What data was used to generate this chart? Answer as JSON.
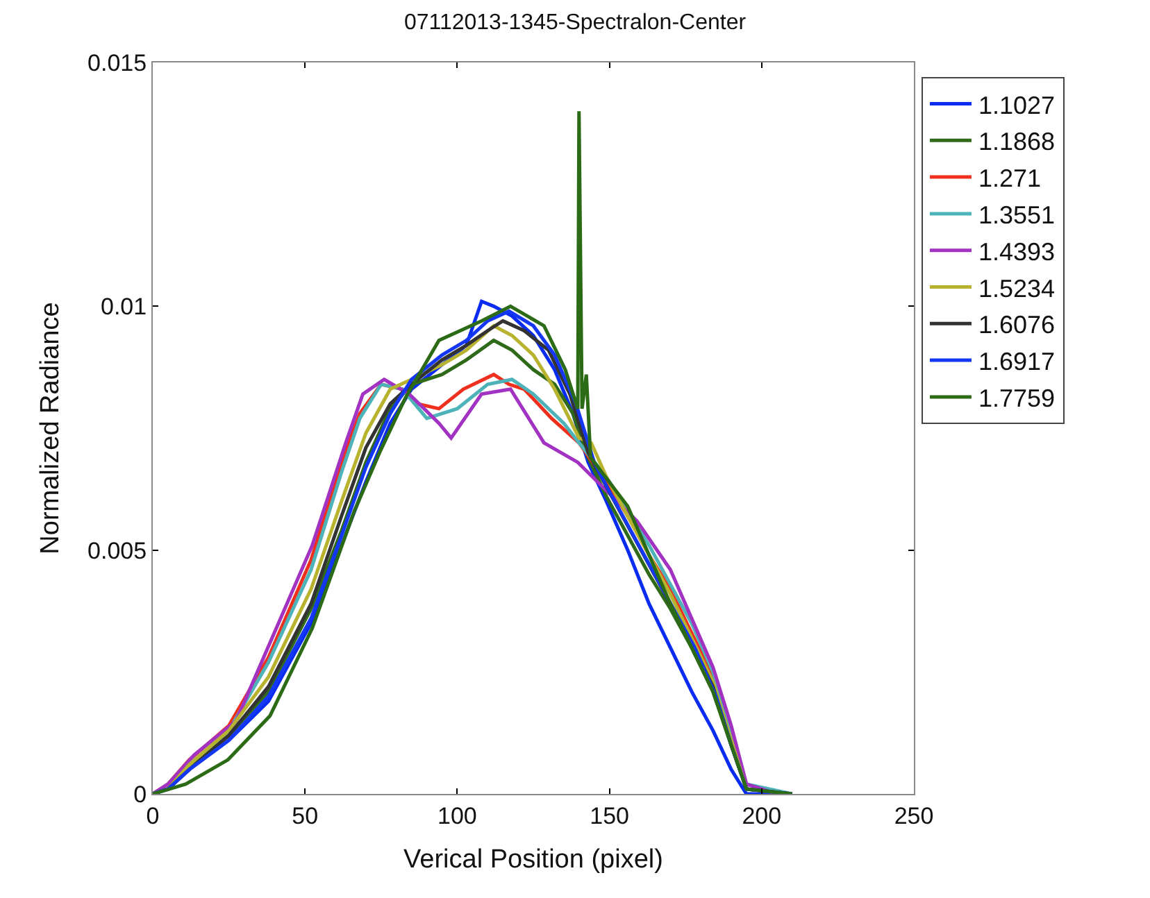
{
  "chart_data": {
    "type": "line",
    "title": "07112013-1345-Spectralon-Center",
    "xlabel": "Verical Position (pixel)",
    "ylabel": "Normalized Radiance",
    "xlim": [
      0,
      250
    ],
    "xticks": [
      0,
      50,
      100,
      150,
      200,
      250
    ],
    "ylim": [
      0,
      0.015
    ],
    "yticks": [
      0,
      0.005,
      0.01,
      0.015
    ],
    "legend": "top right",
    "marker": "none",
    "line_style": "solid",
    "series": [
      {
        "name": "1.1027",
        "color": "#0a2cf0",
        "x": [
          0,
          5,
          12,
          25,
          38,
          52,
          62,
          70,
          78,
          85,
          95,
          103,
          108,
          112,
          118,
          125,
          132,
          138,
          143,
          149,
          156,
          163,
          170,
          177,
          184,
          190,
          195,
          210
        ],
        "values": [
          0,
          0.0001,
          0.0005,
          0.0011,
          0.0019,
          0.0035,
          0.0051,
          0.0064,
          0.0076,
          0.0083,
          0.0088,
          0.0092,
          0.0101,
          0.01,
          0.0098,
          0.0094,
          0.0087,
          0.0078,
          0.0068,
          0.006,
          0.005,
          0.0039,
          0.003,
          0.0021,
          0.0013,
          0.0005,
          0,
          0
        ]
      },
      {
        "name": "1.1868",
        "color": "#2f6a19",
        "x": [
          0,
          5,
          12,
          25,
          38,
          52,
          62,
          70,
          78,
          85,
          95,
          103,
          112,
          118,
          125,
          132,
          138,
          143,
          149,
          156,
          163,
          170,
          177,
          184,
          190,
          195,
          210
        ],
        "values": [
          0,
          0.0001,
          0.0006,
          0.0012,
          0.0021,
          0.0038,
          0.0054,
          0.0068,
          0.0079,
          0.0084,
          0.0086,
          0.0089,
          0.0093,
          0.0091,
          0.0087,
          0.0084,
          0.0078,
          0.0069,
          0.0061,
          0.0053,
          0.0045,
          0.0038,
          0.003,
          0.0021,
          0.001,
          0.0001,
          0
        ]
      },
      {
        "name": "1.271",
        "color": "#f0301e",
        "x": [
          0,
          5,
          12,
          25,
          38,
          52,
          62,
          68,
          75,
          82,
          87,
          94,
          102,
          112,
          117,
          122,
          131,
          140,
          149,
          156,
          163,
          170,
          177,
          184,
          190
        ],
        "values": [
          0,
          0.0002,
          0.0007,
          0.0014,
          0.0028,
          0.0048,
          0.0068,
          0.0078,
          0.0084,
          0.0083,
          0.008,
          0.0079,
          0.0083,
          0.0086,
          0.0084,
          0.0083,
          0.0077,
          0.0072,
          0.0064,
          0.0057,
          0.0049,
          0.0042,
          0.0033,
          0.0024,
          0.0012
        ]
      },
      {
        "name": "1.3551",
        "color": "#4db3b8",
        "x": [
          12,
          25,
          38,
          52,
          62,
          68,
          75,
          82,
          90,
          100,
          110,
          118,
          125,
          135,
          140,
          149,
          156,
          163,
          170,
          177,
          184,
          190,
          195,
          210
        ],
        "values": [
          0.0006,
          0.0013,
          0.0027,
          0.0046,
          0.0066,
          0.0077,
          0.0084,
          0.0083,
          0.0077,
          0.0079,
          0.0084,
          0.0085,
          0.0082,
          0.0076,
          0.0072,
          0.0065,
          0.0058,
          0.0051,
          0.0043,
          0.0035,
          0.0025,
          0.0013,
          0.0002,
          0
        ]
      },
      {
        "name": "1.4393",
        "color": "#a232c2",
        "x": [
          0,
          5,
          13.6,
          27.4,
          38.5,
          52.4,
          63.4,
          69,
          76,
          84.2,
          94,
          98,
          108,
          117.5,
          128.5,
          139.6,
          149.3,
          159,
          170,
          184,
          190,
          195,
          205
        ],
        "values": [
          0,
          0.0002,
          0.0008,
          0.0015,
          0.0031,
          0.0051,
          0.0072,
          0.0082,
          0.0085,
          0.0082,
          0.0076,
          0.0073,
          0.0082,
          0.0083,
          0.0072,
          0.0068,
          0.0062,
          0.0056,
          0.0046,
          0.0026,
          0.0014,
          0.0002,
          0
        ]
      },
      {
        "name": "1.5234",
        "color": "#b8b32e",
        "x": [
          0,
          5,
          12,
          25,
          38,
          52,
          62,
          70,
          78,
          85,
          95,
          103,
          112,
          118,
          125,
          132,
          140,
          144,
          149,
          156,
          163,
          170,
          177,
          184,
          190,
          195,
          210
        ],
        "values": [
          0,
          0.0001,
          0.0006,
          0.0013,
          0.0024,
          0.0042,
          0.006,
          0.0074,
          0.0083,
          0.0085,
          0.0088,
          0.0091,
          0.0096,
          0.0094,
          0.009,
          0.0083,
          0.0073,
          0.0072,
          0.0065,
          0.0057,
          0.0049,
          0.0041,
          0.0032,
          0.0023,
          0.0011,
          0.0001,
          0
        ]
      },
      {
        "name": "1.6076",
        "color": "#333333",
        "x": [
          0,
          5,
          12,
          25,
          38,
          52,
          62,
          70,
          78,
          85,
          95,
          103,
          110,
          115,
          122,
          130,
          137,
          143,
          149,
          156,
          163,
          170,
          177,
          184,
          190,
          195,
          210
        ],
        "values": [
          0,
          0.0001,
          0.0005,
          0.0012,
          0.0022,
          0.0039,
          0.0057,
          0.0071,
          0.008,
          0.0084,
          0.0089,
          0.0092,
          0.0095,
          0.0097,
          0.0095,
          0.0091,
          0.0082,
          0.007,
          0.0063,
          0.0055,
          0.0047,
          0.0039,
          0.0031,
          0.0022,
          0.001,
          0.0001,
          0
        ]
      },
      {
        "name": "1.6917",
        "color": "#1437f5",
        "x": [
          0,
          5,
          12,
          25,
          38,
          52,
          62,
          70,
          78,
          85,
          95,
          103,
          110,
          117,
          125,
          132,
          139,
          145,
          150,
          157,
          164,
          171,
          178,
          185,
          190,
          195,
          210
        ],
        "values": [
          0,
          0.0001,
          0.0005,
          0.0011,
          0.002,
          0.0036,
          0.0053,
          0.0067,
          0.0078,
          0.0085,
          0.009,
          0.0093,
          0.0097,
          0.0099,
          0.0096,
          0.009,
          0.008,
          0.0068,
          0.0062,
          0.0054,
          0.0046,
          0.0038,
          0.003,
          0.002,
          0.001,
          0.0001,
          0
        ]
      },
      {
        "name": "1.7759",
        "color": "#2c6b16",
        "x": [
          0,
          10.8,
          24.7,
          38.5,
          52.4,
          66.2,
          74.5,
          82.8,
          94,
          108,
          117.5,
          128.5,
          135.5,
          139.6,
          140,
          141,
          142.4,
          143.8,
          156,
          170,
          184,
          190,
          195,
          210
        ],
        "values": [
          0,
          0.0002,
          0.0007,
          0.0016,
          0.0034,
          0.0058,
          0.007,
          0.0081,
          0.0093,
          0.0097,
          0.01,
          0.0096,
          0.0087,
          0.0079,
          0.014,
          0.0079,
          0.0086,
          0.0069,
          0.0059,
          0.0039,
          0.0021,
          0.001,
          0.0001,
          0
        ]
      }
    ]
  }
}
